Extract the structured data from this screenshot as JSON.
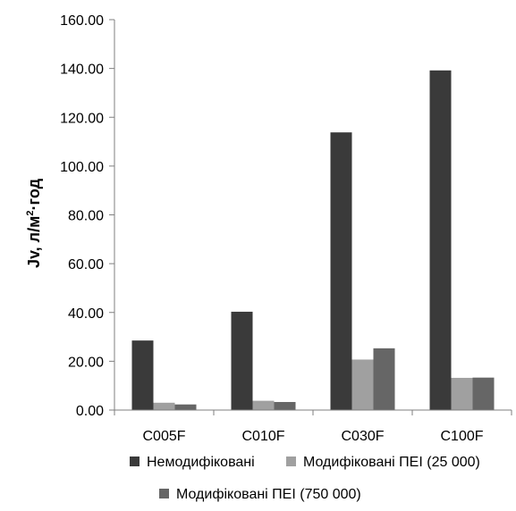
{
  "chart_data": {
    "type": "bar",
    "categories": [
      "C005F",
      "C010F",
      "C030F",
      "C100F"
    ],
    "series": [
      {
        "name": "Немодифіковані",
        "values": [
          28.5,
          40.3,
          113.8,
          139.2
        ],
        "color": "#3a3a3a"
      },
      {
        "name": "Модифіковані ПЕІ (25 000)",
        "values": [
          3.0,
          3.8,
          20.7,
          13.2
        ],
        "color": "#a0a0a0"
      },
      {
        "name": "Модифіковані ПЕІ (750 000)",
        "values": [
          2.3,
          3.3,
          25.3,
          13.3
        ],
        "color": "#666666"
      }
    ],
    "ylim": [
      0,
      160
    ],
    "yticks": [
      "0.00",
      "20.00",
      "40.00",
      "60.00",
      "80.00",
      "100.00",
      "120.00",
      "140.00",
      "160.00"
    ],
    "ylabel": {
      "main": "Jv, л/м",
      "sup": "2",
      "tail": "·год"
    },
    "xlabel": "",
    "grid": false,
    "legend_position": "bottom"
  }
}
